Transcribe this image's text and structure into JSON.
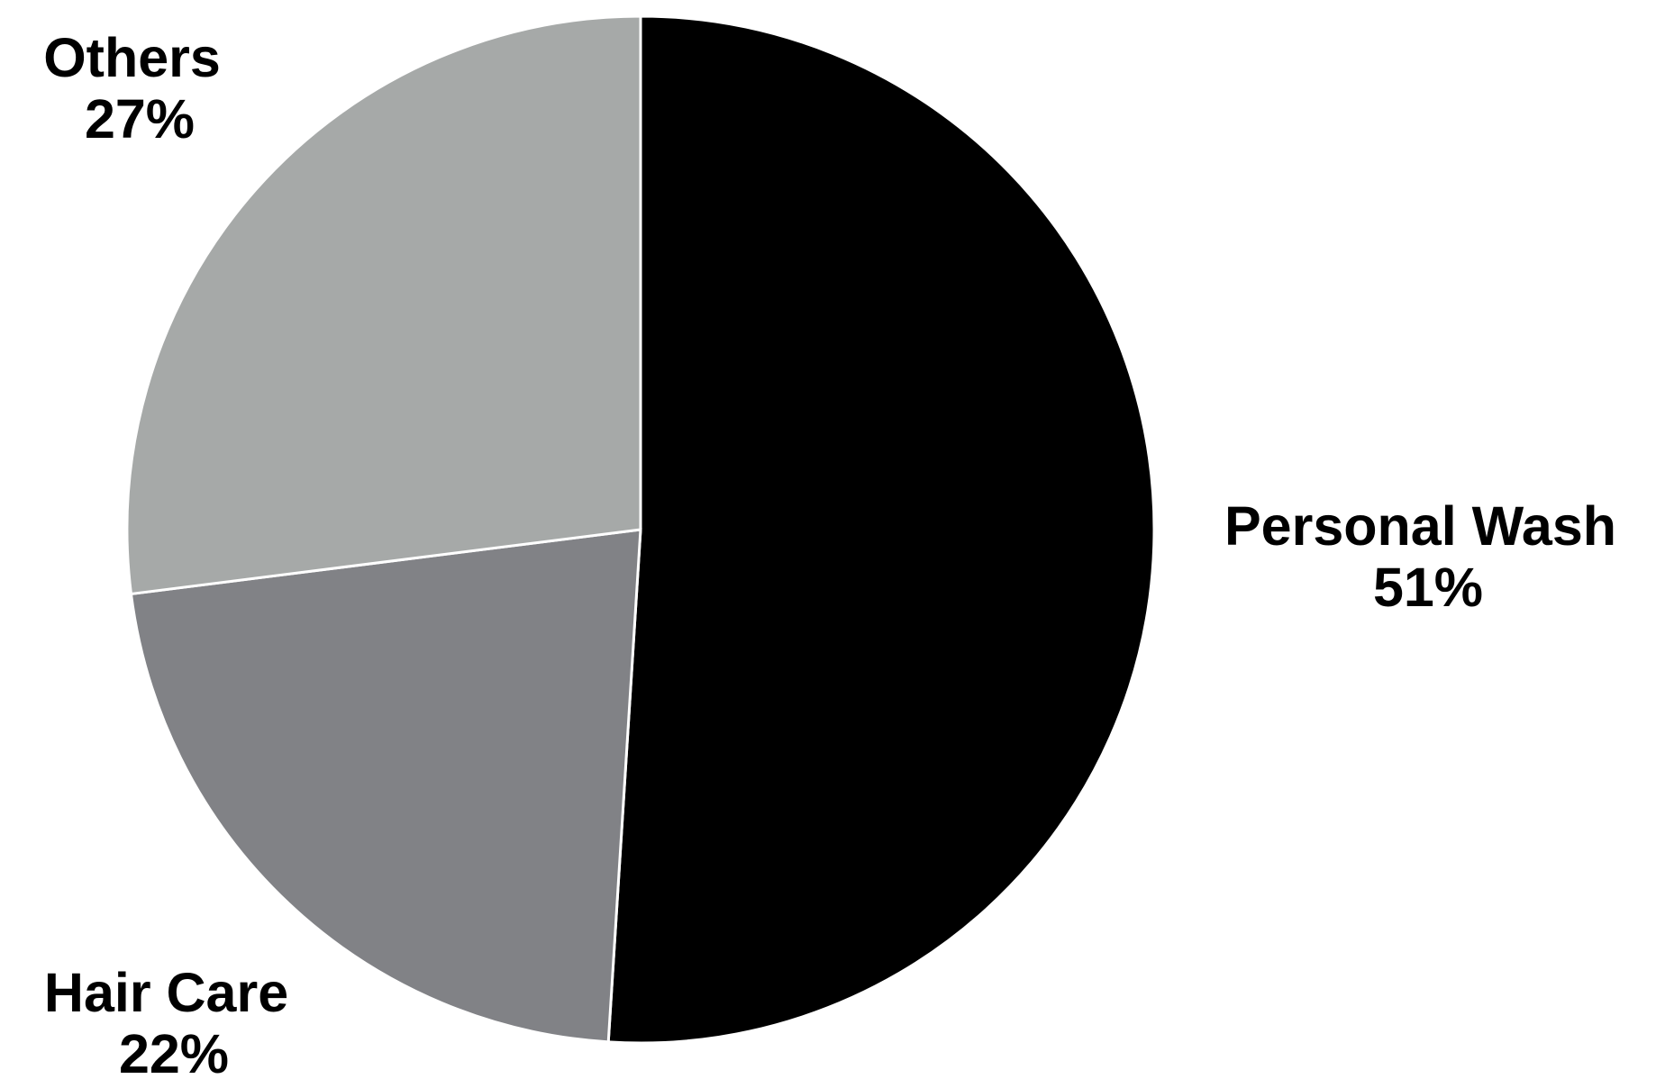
{
  "chart_data": {
    "type": "pie",
    "title": "",
    "start": "12 o'clock",
    "direction": "clockwise",
    "legend": "none",
    "data_labels": "outside",
    "slices": [
      {
        "name": "Personal Wash",
        "value": 51,
        "label": "51%",
        "color": "#000000"
      },
      {
        "name": "Hair Care",
        "value": 22,
        "label": "22%",
        "color": "#818286"
      },
      {
        "name": "Others",
        "value": 27,
        "label": "27%",
        "color": "#a6a9a8"
      }
    ]
  }
}
